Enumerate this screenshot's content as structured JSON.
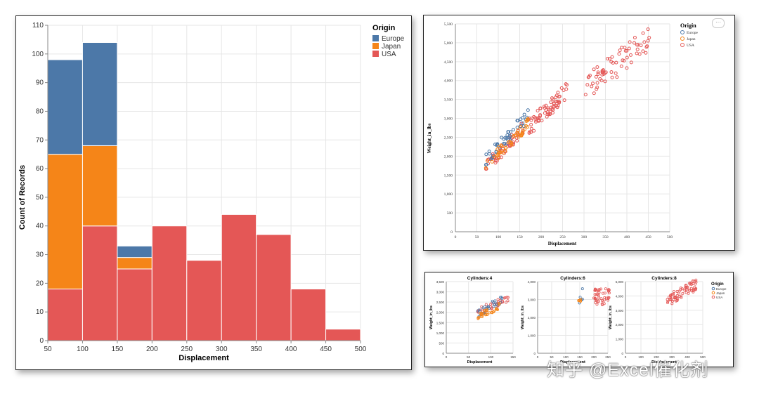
{
  "chart_data": [
    {
      "type": "bar",
      "stacked": true,
      "title": "",
      "xlabel": "Displacement",
      "ylabel": "Count of Records",
      "xlim": [
        50,
        500
      ],
      "ylim": [
        0,
        110
      ],
      "x_ticks": [
        "50",
        "100",
        "150",
        "200",
        "250",
        "300",
        "350",
        "400",
        "450",
        "500"
      ],
      "y_ticks": [
        "0",
        "10",
        "20",
        "30",
        "40",
        "50",
        "60",
        "70",
        "80",
        "90",
        "100",
        "110"
      ],
      "bins": [
        [
          50,
          100
        ],
        [
          100,
          150
        ],
        [
          150,
          200
        ],
        [
          200,
          250
        ],
        [
          250,
          300
        ],
        [
          300,
          350
        ],
        [
          350,
          400
        ],
        [
          400,
          450
        ],
        [
          450,
          500
        ]
      ],
      "series": [
        {
          "name": "USA",
          "color": "#e45756",
          "values": [
            18,
            40,
            25,
            40,
            28,
            44,
            37,
            18,
            4
          ]
        },
        {
          "name": "Japan",
          "color": "#f58518",
          "values": [
            47,
            28,
            4,
            0,
            0,
            0,
            0,
            0,
            0
          ]
        },
        {
          "name": "Europe",
          "color": "#4c78a8",
          "values": [
            33,
            36,
            4,
            0,
            0,
            0,
            0,
            0,
            0
          ]
        }
      ],
      "legend": {
        "title": "Origin",
        "position": "top-right",
        "entries": [
          "Europe",
          "Japan",
          "USA"
        ]
      }
    },
    {
      "type": "scatter",
      "title": "",
      "xlabel": "Displacement",
      "ylabel": "Weight_in_lbs",
      "xlim": [
        0,
        500
      ],
      "ylim": [
        0,
        5500
      ],
      "x_ticks": [
        "0",
        "50",
        "100",
        "150",
        "200",
        "250",
        "300",
        "350",
        "400",
        "450",
        "500"
      ],
      "y_ticks": [
        "0",
        "500",
        "1,000",
        "1,500",
        "2,000",
        "2,500",
        "3,000",
        "3,500",
        "4,000",
        "4,500",
        "5,000",
        "5,500"
      ],
      "legend": {
        "title": "Origin",
        "position": "top-right",
        "entries": [
          "Europe",
          "Japan",
          "USA"
        ]
      },
      "menu_label": "···"
    },
    {
      "type": "scatter",
      "faceted": true,
      "facets": [
        {
          "title": "Cylinders:4",
          "xlabel": "Displacement",
          "ylabel": "Weight_in_lbs",
          "x_ticks": [
            "0",
            "50",
            "100",
            "150"
          ],
          "y_ticks": [
            "0",
            "500",
            "1,000",
            "1,500",
            "2,000",
            "2,500",
            "3,000",
            "3,500"
          ]
        },
        {
          "title": "Cylinders:6",
          "xlabel": "Displacement",
          "ylabel": "Weight_in_lbs",
          "x_ticks": [
            "0",
            "50",
            "100",
            "150",
            "200",
            "250"
          ],
          "y_ticks": [
            "0",
            "1,000",
            "2,000",
            "3,000",
            "4,000"
          ]
        },
        {
          "title": "Cylinders:8",
          "xlabel": "Displacement",
          "ylabel": "Weight_in_lbs",
          "x_ticks": [
            "0",
            "100",
            "200",
            "300",
            "400",
            "500"
          ],
          "y_ticks": [
            "0",
            "1,000",
            "2,000",
            "3,000",
            "4,000",
            "5,000"
          ]
        }
      ],
      "legend": {
        "title": "Origin",
        "position": "top-right",
        "entries": [
          "Europe",
          "Japan",
          "USA"
        ]
      }
    }
  ],
  "colors": {
    "Europe": "#4c78a8",
    "Japan": "#f58518",
    "USA": "#e45756",
    "grid": "#e6e6e6",
    "axis": "#888888"
  },
  "watermark": "知乎 @Excel催化剂"
}
